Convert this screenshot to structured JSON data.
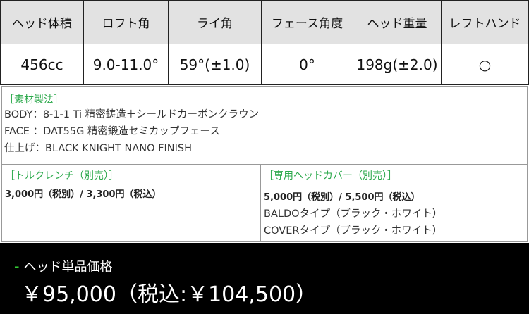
{
  "specs": {
    "headers": [
      "ヘッド体積",
      "ロフト角",
      "ライ角",
      "フェース角度",
      "ヘッド重量",
      "レフトハンド"
    ],
    "values": [
      "456cc",
      "9.0-11.0°",
      "59°(±1.0)",
      "0°",
      "198g(±2.0)",
      "○"
    ]
  },
  "materials": {
    "title": "［素材製法］",
    "lines": [
      "BODY：8-1-1 Ti 精密鋳造＋シールドカーボンクラウン",
      "FACE ：DAT55G 精密鍛造セミカップフェース",
      "仕上げ：BLACK KNIGHT NANO FINISH"
    ]
  },
  "torque_wrench": {
    "title": "［トルクレンチ（別売）］",
    "price": "3,000円（税別）/ 3,300円（税込）"
  },
  "head_cover": {
    "title": "［専用ヘッドカバー（別売）］",
    "price": "5,000円（税別）/ 5,500円（税込）",
    "types": [
      "BALDOタイプ（ブラック・ホワイト）",
      "COVERタイプ（ブラック・ホワイト）"
    ]
  },
  "footer": {
    "dash": "-",
    "label": "ヘッド単品価格",
    "price": "￥95,000（税込:￥104,500）"
  },
  "colors": {
    "accent": "#2aa84a",
    "header_bg": "#e2e2e2",
    "footer_bg": "#000000"
  }
}
